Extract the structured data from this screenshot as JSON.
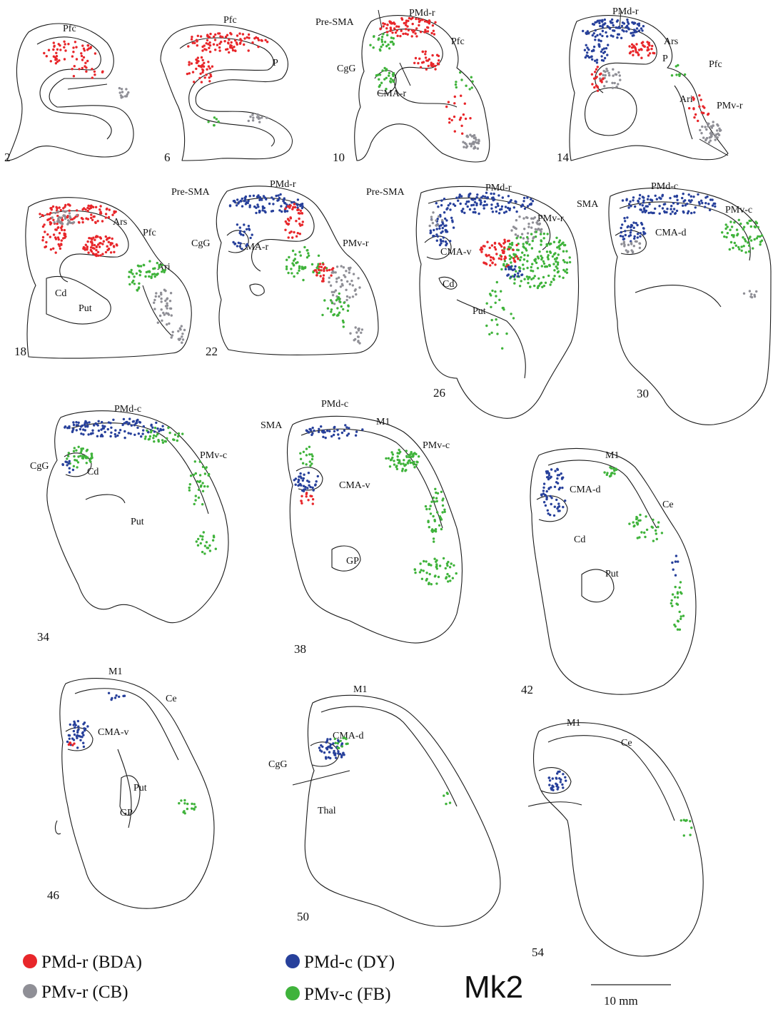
{
  "figure": {
    "monkey_label": "Mk2",
    "scale_bar_label": "10 mm",
    "colors": {
      "pmd_r": "#e8262a",
      "pmv_r": "#8f8f96",
      "pmd_c": "#27409b",
      "pmv_c": "#3fb33b"
    },
    "legend": [
      {
        "label": "PMd-r (BDA)",
        "color": "#e8262a"
      },
      {
        "label": "PMv-r (CB)",
        "color": "#8f8f96"
      },
      {
        "label": "PMd-c (DY)",
        "color": "#27409b"
      },
      {
        "label": "PMv-c (FB)",
        "color": "#3fb33b"
      }
    ],
    "sections": [
      {
        "number": "2",
        "labels": [
          "Pfc"
        ]
      },
      {
        "number": "6",
        "labels": [
          "Pfc",
          "P"
        ]
      },
      {
        "number": "10",
        "labels": [
          "Pre-SMA",
          "PMd-r",
          "Pfc",
          "CgG",
          "CMA-r"
        ]
      },
      {
        "number": "14",
        "labels": [
          "PMd-r",
          "Ars",
          "P",
          "Pfc",
          "Ari",
          "PMv-r"
        ]
      },
      {
        "number": "18",
        "labels": [
          "Ars",
          "Pfc",
          "Ari",
          "Cd",
          "Put"
        ]
      },
      {
        "number": "22",
        "labels": [
          "Pre-SMA",
          "PMd-r",
          "CgG",
          "CMA-r",
          "PMv-r"
        ]
      },
      {
        "number": "26",
        "labels": [
          "Pre-SMA",
          "PMd-r",
          "PMv-r",
          "CMA-v",
          "Cd",
          "Put"
        ]
      },
      {
        "number": "30",
        "labels": [
          "SMA",
          "PMd-c",
          "PMv-c",
          "CMA-d"
        ]
      },
      {
        "number": "34",
        "labels": [
          "PMd-c",
          "PMv-c",
          "CgG",
          "Cd",
          "Put"
        ]
      },
      {
        "number": "38",
        "labels": [
          "PMd-c",
          "SMA",
          "M1",
          "PMv-c",
          "CMA-v",
          "GP"
        ]
      },
      {
        "number": "42",
        "labels": [
          "M1",
          "CMA-d",
          "Ce",
          "Cd",
          "Put"
        ]
      },
      {
        "number": "46",
        "labels": [
          "M1",
          "Ce",
          "CMA-v",
          "Put",
          "GP"
        ]
      },
      {
        "number": "50",
        "labels": [
          "M1",
          "CMA-d",
          "CgG",
          "Thal"
        ]
      },
      {
        "number": "54",
        "labels": [
          "M1",
          "Ce"
        ]
      }
    ]
  }
}
